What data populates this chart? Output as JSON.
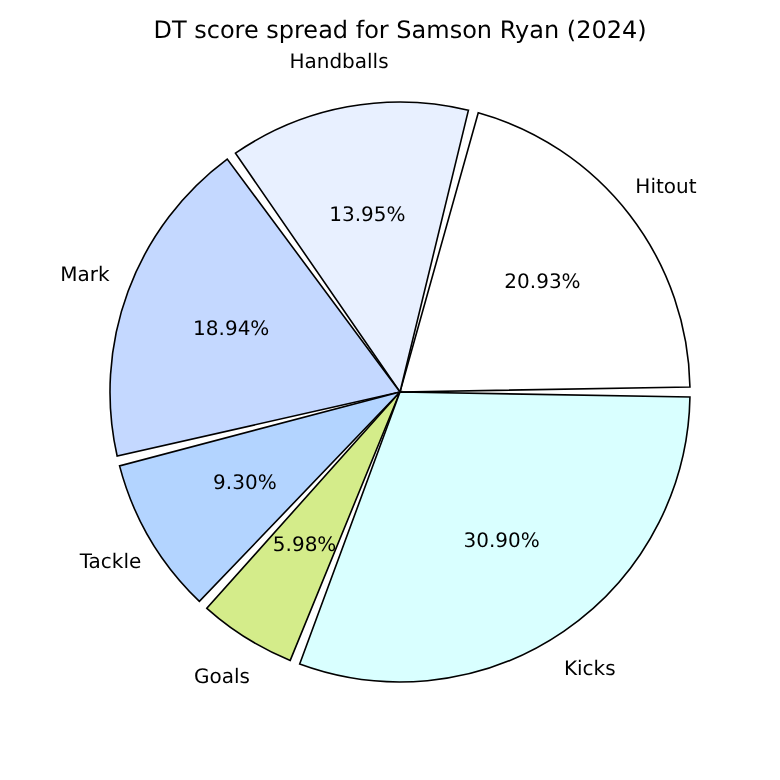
{
  "chart_data": {
    "type": "pie",
    "title": "DT score spread for Samson Ryan (2024)",
    "categories": [
      "Hitout",
      "Handballs",
      "Mark",
      "Tackle",
      "Goals",
      "Kicks"
    ],
    "values": [
      20.93,
      13.95,
      18.94,
      9.3,
      5.98,
      30.9
    ],
    "value_labels": [
      "20.93%",
      "13.95%",
      "18.94%",
      "9.30%",
      "5.98%",
      "30.90%"
    ],
    "colors": [
      "#ffffff",
      "#e8f0ff",
      "#c4d8ff",
      "#b3d4ff",
      "#d4ec8a",
      "#d9ffff"
    ],
    "legend": false
  }
}
